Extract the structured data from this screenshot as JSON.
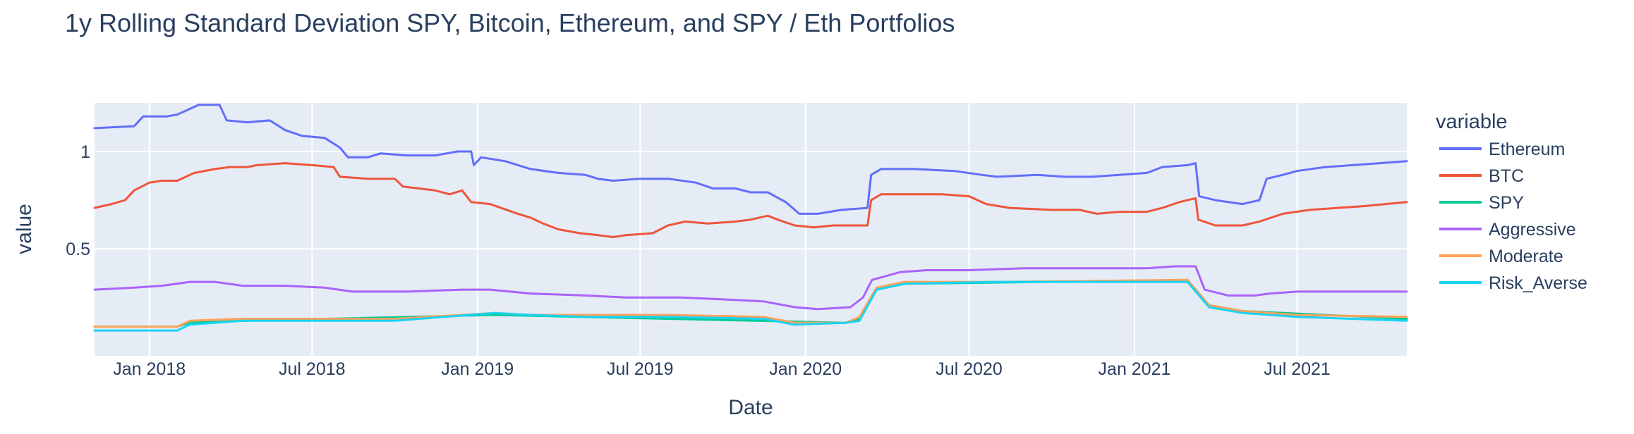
{
  "chart_data": {
    "type": "line",
    "title": "1y Rolling Standard Deviation SPY, Bitcoin, Ethereum, and SPY / Eth Portfolios",
    "xlabel": "Date",
    "ylabel": "value",
    "xlim": [
      "2017-11-01",
      "2021-10-31"
    ],
    "ylim": [
      -0.05,
      1.25
    ],
    "x_ticks": [
      "2018-01-01",
      "2018-07-01",
      "2019-01-01",
      "2019-07-01",
      "2020-01-01",
      "2020-07-01",
      "2021-01-01",
      "2021-07-01"
    ],
    "x_tick_labels": [
      "Jan 2018",
      "Jul 2018",
      "Jan 2019",
      "Jul 2019",
      "Jan 2020",
      "Jul 2020",
      "Jan 2021",
      "Jul 2021"
    ],
    "y_ticks": [
      0.5,
      1
    ],
    "y_tick_labels": [
      "0.5",
      "1"
    ],
    "grid": true,
    "plot_background": "#e5ecf6",
    "legend": {
      "title": "variable",
      "placement": "right"
    },
    "series": [
      {
        "name": "Ethereum",
        "color": "#636efa",
        "points": [
          [
            "2017-11-01",
            1.12
          ],
          [
            "2017-12-15",
            1.13
          ],
          [
            "2017-12-25",
            1.18
          ],
          [
            "2018-01-20",
            1.18
          ],
          [
            "2018-02-01",
            1.19
          ],
          [
            "2018-02-25",
            1.24
          ],
          [
            "2018-03-20",
            1.24
          ],
          [
            "2018-03-28",
            1.16
          ],
          [
            "2018-04-20",
            1.15
          ],
          [
            "2018-05-15",
            1.16
          ],
          [
            "2018-06-01",
            1.11
          ],
          [
            "2018-06-20",
            1.08
          ],
          [
            "2018-07-15",
            1.07
          ],
          [
            "2018-08-01",
            1.02
          ],
          [
            "2018-08-10",
            0.97
          ],
          [
            "2018-09-01",
            0.97
          ],
          [
            "2018-09-15",
            0.99
          ],
          [
            "2018-10-15",
            0.98
          ],
          [
            "2018-11-15",
            0.98
          ],
          [
            "2018-12-10",
            1.0
          ],
          [
            "2018-12-25",
            1.0
          ],
          [
            "2018-12-28",
            0.93
          ],
          [
            "2019-01-05",
            0.97
          ],
          [
            "2019-02-01",
            0.95
          ],
          [
            "2019-03-01",
            0.91
          ],
          [
            "2019-04-01",
            0.89
          ],
          [
            "2019-05-01",
            0.88
          ],
          [
            "2019-05-15",
            0.86
          ],
          [
            "2019-06-01",
            0.85
          ],
          [
            "2019-07-01",
            0.86
          ],
          [
            "2019-08-01",
            0.86
          ],
          [
            "2019-09-01",
            0.84
          ],
          [
            "2019-09-20",
            0.81
          ],
          [
            "2019-10-15",
            0.81
          ],
          [
            "2019-11-01",
            0.79
          ],
          [
            "2019-11-20",
            0.79
          ],
          [
            "2019-12-10",
            0.74
          ],
          [
            "2019-12-25",
            0.68
          ],
          [
            "2020-01-15",
            0.68
          ],
          [
            "2020-02-10",
            0.7
          ],
          [
            "2020-03-10",
            0.71
          ],
          [
            "2020-03-14",
            0.88
          ],
          [
            "2020-03-25",
            0.91
          ],
          [
            "2020-05-01",
            0.91
          ],
          [
            "2020-06-15",
            0.9
          ],
          [
            "2020-07-15",
            0.88
          ],
          [
            "2020-08-01",
            0.87
          ],
          [
            "2020-09-15",
            0.88
          ],
          [
            "2020-10-15",
            0.87
          ],
          [
            "2020-11-15",
            0.87
          ],
          [
            "2020-12-15",
            0.88
          ],
          [
            "2021-01-15",
            0.89
          ],
          [
            "2021-02-01",
            0.92
          ],
          [
            "2021-03-01",
            0.93
          ],
          [
            "2021-03-10",
            0.94
          ],
          [
            "2021-03-14",
            0.77
          ],
          [
            "2021-04-01",
            0.75
          ],
          [
            "2021-05-01",
            0.73
          ],
          [
            "2021-05-20",
            0.75
          ],
          [
            "2021-05-28",
            0.86
          ],
          [
            "2021-06-15",
            0.88
          ],
          [
            "2021-07-01",
            0.9
          ],
          [
            "2021-08-01",
            0.92
          ],
          [
            "2021-09-01",
            0.93
          ],
          [
            "2021-10-01",
            0.94
          ],
          [
            "2021-10-31",
            0.95
          ]
        ]
      },
      {
        "name": "BTC",
        "color": "#ef553b",
        "points": [
          [
            "2017-11-01",
            0.71
          ],
          [
            "2017-11-20",
            0.73
          ],
          [
            "2017-12-05",
            0.75
          ],
          [
            "2017-12-15",
            0.8
          ],
          [
            "2018-01-01",
            0.84
          ],
          [
            "2018-01-15",
            0.85
          ],
          [
            "2018-02-01",
            0.85
          ],
          [
            "2018-02-20",
            0.89
          ],
          [
            "2018-03-15",
            0.91
          ],
          [
            "2018-04-01",
            0.92
          ],
          [
            "2018-04-20",
            0.92
          ],
          [
            "2018-05-01",
            0.93
          ],
          [
            "2018-06-01",
            0.94
          ],
          [
            "2018-07-01",
            0.93
          ],
          [
            "2018-07-25",
            0.92
          ],
          [
            "2018-08-01",
            0.87
          ],
          [
            "2018-09-01",
            0.86
          ],
          [
            "2018-10-01",
            0.86
          ],
          [
            "2018-10-10",
            0.82
          ],
          [
            "2018-11-15",
            0.8
          ],
          [
            "2018-12-01",
            0.78
          ],
          [
            "2018-12-15",
            0.8
          ],
          [
            "2018-12-25",
            0.74
          ],
          [
            "2019-01-15",
            0.73
          ],
          [
            "2019-02-15",
            0.68
          ],
          [
            "2019-03-01",
            0.66
          ],
          [
            "2019-03-15",
            0.63
          ],
          [
            "2019-04-01",
            0.6
          ],
          [
            "2019-04-25",
            0.58
          ],
          [
            "2019-05-15",
            0.57
          ],
          [
            "2019-06-01",
            0.56
          ],
          [
            "2019-06-15",
            0.57
          ],
          [
            "2019-07-15",
            0.58
          ],
          [
            "2019-08-01",
            0.62
          ],
          [
            "2019-08-20",
            0.64
          ],
          [
            "2019-09-15",
            0.63
          ],
          [
            "2019-10-15",
            0.64
          ],
          [
            "2019-11-01",
            0.65
          ],
          [
            "2019-11-20",
            0.67
          ],
          [
            "2019-12-01",
            0.65
          ],
          [
            "2019-12-20",
            0.62
          ],
          [
            "2020-01-10",
            0.61
          ],
          [
            "2020-02-01",
            0.62
          ],
          [
            "2020-03-10",
            0.62
          ],
          [
            "2020-03-14",
            0.75
          ],
          [
            "2020-03-25",
            0.78
          ],
          [
            "2020-05-01",
            0.78
          ],
          [
            "2020-06-01",
            0.78
          ],
          [
            "2020-07-01",
            0.77
          ],
          [
            "2020-07-20",
            0.73
          ],
          [
            "2020-08-15",
            0.71
          ],
          [
            "2020-10-01",
            0.7
          ],
          [
            "2020-11-01",
            0.7
          ],
          [
            "2020-11-20",
            0.68
          ],
          [
            "2020-12-15",
            0.69
          ],
          [
            "2021-01-15",
            0.69
          ],
          [
            "2021-02-01",
            0.71
          ],
          [
            "2021-02-20",
            0.74
          ],
          [
            "2021-03-10",
            0.76
          ],
          [
            "2021-03-13",
            0.65
          ],
          [
            "2021-04-01",
            0.62
          ],
          [
            "2021-05-01",
            0.62
          ],
          [
            "2021-05-20",
            0.64
          ],
          [
            "2021-06-15",
            0.68
          ],
          [
            "2021-07-15",
            0.7
          ],
          [
            "2021-08-15",
            0.71
          ],
          [
            "2021-09-15",
            0.72
          ],
          [
            "2021-10-31",
            0.74
          ]
        ]
      },
      {
        "name": "SPY",
        "color": "#00cc96",
        "points": [
          [
            "2017-11-01",
            0.1
          ],
          [
            "2018-02-01",
            0.1
          ],
          [
            "2018-02-15",
            0.12
          ],
          [
            "2018-04-15",
            0.13
          ],
          [
            "2019-01-20",
            0.16
          ],
          [
            "2020-02-15",
            0.12
          ],
          [
            "2020-03-01",
            0.14
          ],
          [
            "2020-03-20",
            0.29
          ],
          [
            "2020-04-20",
            0.32
          ],
          [
            "2021-03-01",
            0.34
          ],
          [
            "2021-03-25",
            0.21
          ],
          [
            "2021-05-01",
            0.18
          ],
          [
            "2021-10-31",
            0.14
          ]
        ]
      },
      {
        "name": "Aggressive",
        "color": "#ab63fa",
        "points": [
          [
            "2017-11-01",
            0.29
          ],
          [
            "2017-12-15",
            0.3
          ],
          [
            "2018-01-15",
            0.31
          ],
          [
            "2018-02-15",
            0.33
          ],
          [
            "2018-03-15",
            0.33
          ],
          [
            "2018-04-15",
            0.31
          ],
          [
            "2018-06-01",
            0.31
          ],
          [
            "2018-07-15",
            0.3
          ],
          [
            "2018-08-15",
            0.28
          ],
          [
            "2018-10-15",
            0.28
          ],
          [
            "2018-12-15",
            0.29
          ],
          [
            "2019-01-15",
            0.29
          ],
          [
            "2019-03-01",
            0.27
          ],
          [
            "2019-05-01",
            0.26
          ],
          [
            "2019-06-15",
            0.25
          ],
          [
            "2019-08-15",
            0.25
          ],
          [
            "2019-10-01",
            0.24
          ],
          [
            "2019-11-15",
            0.23
          ],
          [
            "2019-12-20",
            0.2
          ],
          [
            "2020-01-15",
            0.19
          ],
          [
            "2020-02-20",
            0.2
          ],
          [
            "2020-03-05",
            0.25
          ],
          [
            "2020-03-15",
            0.34
          ],
          [
            "2020-04-15",
            0.38
          ],
          [
            "2020-05-15",
            0.39
          ],
          [
            "2020-07-01",
            0.39
          ],
          [
            "2020-09-01",
            0.4
          ],
          [
            "2020-11-01",
            0.4
          ],
          [
            "2021-01-15",
            0.4
          ],
          [
            "2021-02-15",
            0.41
          ],
          [
            "2021-03-10",
            0.41
          ],
          [
            "2021-03-20",
            0.29
          ],
          [
            "2021-04-15",
            0.26
          ],
          [
            "2021-05-15",
            0.26
          ],
          [
            "2021-06-01",
            0.27
          ],
          [
            "2021-07-01",
            0.28
          ],
          [
            "2021-10-31",
            0.28
          ]
        ]
      },
      {
        "name": "Moderate",
        "color": "#ffa15a",
        "points": [
          [
            "2017-11-01",
            0.1
          ],
          [
            "2018-02-01",
            0.1
          ],
          [
            "2018-02-15",
            0.13
          ],
          [
            "2018-04-15",
            0.14
          ],
          [
            "2018-10-01",
            0.14
          ],
          [
            "2019-01-20",
            0.17
          ],
          [
            "2019-03-01",
            0.16
          ],
          [
            "2019-05-01",
            0.16
          ],
          [
            "2019-08-01",
            0.16
          ],
          [
            "2019-11-15",
            0.15
          ],
          [
            "2019-12-20",
            0.12
          ],
          [
            "2020-02-15",
            0.12
          ],
          [
            "2020-03-01",
            0.15
          ],
          [
            "2020-03-20",
            0.3
          ],
          [
            "2020-04-20",
            0.33
          ],
          [
            "2020-08-01",
            0.33
          ],
          [
            "2021-03-01",
            0.34
          ],
          [
            "2021-03-25",
            0.21
          ],
          [
            "2021-05-01",
            0.18
          ],
          [
            "2021-07-01",
            0.16
          ],
          [
            "2021-10-31",
            0.15
          ]
        ]
      },
      {
        "name": "Risk_Averse",
        "color": "#19d3f3",
        "points": [
          [
            "2017-11-01",
            0.08
          ],
          [
            "2018-02-01",
            0.08
          ],
          [
            "2018-02-15",
            0.11
          ],
          [
            "2018-04-15",
            0.13
          ],
          [
            "2018-10-01",
            0.13
          ],
          [
            "2019-01-20",
            0.17
          ],
          [
            "2019-03-01",
            0.16
          ],
          [
            "2019-05-01",
            0.15
          ],
          [
            "2019-08-01",
            0.15
          ],
          [
            "2019-11-15",
            0.14
          ],
          [
            "2019-12-20",
            0.11
          ],
          [
            "2020-02-15",
            0.12
          ],
          [
            "2020-03-01",
            0.13
          ],
          [
            "2020-03-20",
            0.29
          ],
          [
            "2020-04-20",
            0.32
          ],
          [
            "2020-08-01",
            0.33
          ],
          [
            "2021-03-01",
            0.33
          ],
          [
            "2021-03-25",
            0.2
          ],
          [
            "2021-05-01",
            0.17
          ],
          [
            "2021-07-01",
            0.15
          ],
          [
            "2021-10-31",
            0.13
          ]
        ]
      }
    ]
  }
}
